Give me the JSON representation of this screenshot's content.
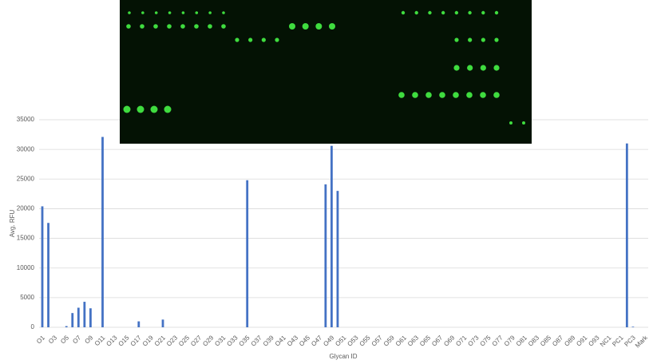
{
  "chart_data": {
    "type": "bar",
    "x_label": "Glycan ID",
    "y_label": "Avg. RFU",
    "categories": [
      "O1",
      null,
      "O3",
      null,
      "O5",
      null,
      "O7",
      null,
      "O9",
      null,
      "O11",
      null,
      "O13",
      null,
      "O15",
      null,
      "O17",
      null,
      "O19",
      null,
      "O21",
      null,
      "O23",
      null,
      "O25",
      null,
      "O27",
      null,
      "O29",
      null,
      "O31",
      null,
      "O33",
      null,
      "O35",
      null,
      "O37",
      null,
      "O39",
      null,
      "O41",
      null,
      "O43",
      null,
      "O45",
      null,
      "O47",
      null,
      "O49",
      null,
      "O51",
      null,
      "O53",
      null,
      "O55",
      null,
      "O57",
      null,
      "O59",
      null,
      "O61",
      null,
      "O63",
      null,
      "O65",
      null,
      "O67",
      null,
      "O69",
      null,
      "O71",
      null,
      "O73",
      null,
      "O75",
      null,
      "O77",
      null,
      "O79",
      null,
      "O81",
      null,
      "O83",
      null,
      "O85",
      null,
      "O87",
      null,
      "O89",
      null,
      "O91",
      null,
      "O93",
      null,
      "NC1",
      null,
      "PC1",
      null,
      "PC3",
      null,
      "Mark"
    ],
    "values": [
      20400,
      17600,
      0,
      0,
      200,
      2400,
      3300,
      4300,
      3200,
      0,
      32100,
      0,
      0,
      0,
      0,
      0,
      1000,
      0,
      0,
      0,
      1300,
      0,
      0,
      0,
      0,
      0,
      0,
      0,
      0,
      0,
      0,
      0,
      0,
      0,
      24800,
      0,
      0,
      0,
      0,
      0,
      0,
      0,
      0,
      0,
      0,
      0,
      0,
      24100,
      30600,
      23000,
      0,
      0,
      0,
      0,
      0,
      0,
      0,
      0,
      0,
      0,
      0,
      0,
      0,
      0,
      0,
      0,
      0,
      0,
      0,
      0,
      0,
      0,
      0,
      0,
      0,
      0,
      0,
      0,
      0,
      0,
      0,
      0,
      0,
      0,
      0,
      0,
      0,
      0,
      0,
      0,
      0,
      0,
      0,
      0,
      0,
      0,
      0,
      31000,
      100,
      0,
      0
    ],
    "color": "#4472c4",
    "ylim": [
      0,
      35000
    ],
    "yticks": [
      0,
      5000,
      10000,
      15000,
      20000,
      25000,
      30000,
      35000
    ],
    "grid": true
  }
}
